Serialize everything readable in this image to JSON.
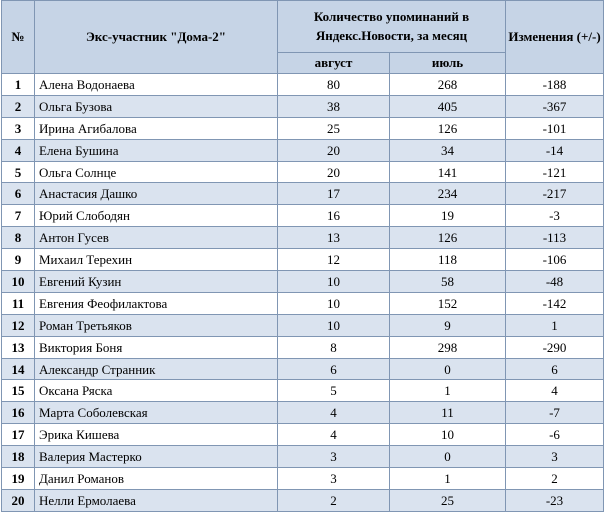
{
  "header": {
    "col_num": "№",
    "col_name": "Экс-участник \"Дома-2\"",
    "col_mentions": "Количество упоминаний в Яндекс.Новости, за месяц",
    "col_change": "Изменения (+/-)",
    "sub_august": "август",
    "sub_july": "июль"
  },
  "rows": [
    {
      "n": "1",
      "name": "Алена Водонаева",
      "aug": "80",
      "jul": "268",
      "chg": "-188"
    },
    {
      "n": "2",
      "name": "Ольга Бузова",
      "aug": "38",
      "jul": "405",
      "chg": "-367"
    },
    {
      "n": "3",
      "name": "Ирина Агибалова",
      "aug": "25",
      "jul": "126",
      "chg": "-101"
    },
    {
      "n": "4",
      "name": "Елена Бушина",
      "aug": "20",
      "jul": "34",
      "chg": "-14"
    },
    {
      "n": "5",
      "name": "Ольга Солнце",
      "aug": "20",
      "jul": "141",
      "chg": "-121"
    },
    {
      "n": "6",
      "name": "Анастасия Дашко",
      "aug": "17",
      "jul": "234",
      "chg": "-217"
    },
    {
      "n": "7",
      "name": "Юрий Слободян",
      "aug": "16",
      "jul": "19",
      "chg": "-3"
    },
    {
      "n": "8",
      "name": "Антон Гусев",
      "aug": "13",
      "jul": "126",
      "chg": "-113"
    },
    {
      "n": "9",
      "name": "Михаил Терехин",
      "aug": "12",
      "jul": "118",
      "chg": "-106"
    },
    {
      "n": "10",
      "name": "Евгений Кузин",
      "aug": "10",
      "jul": "58",
      "chg": "-48"
    },
    {
      "n": "11",
      "name": "Евгения Феофилактова",
      "aug": "10",
      "jul": "152",
      "chg": "-142"
    },
    {
      "n": "12",
      "name": "Роман Третьяков",
      "aug": "10",
      "jul": "9",
      "chg": "1"
    },
    {
      "n": "13",
      "name": "Виктория Боня",
      "aug": "8",
      "jul": "298",
      "chg": "-290"
    },
    {
      "n": "14",
      "name": "Александр Странник",
      "aug": "6",
      "jul": "0",
      "chg": "6"
    },
    {
      "n": "15",
      "name": "Оксана Ряска",
      "aug": "5",
      "jul": "1",
      "chg": "4"
    },
    {
      "n": "16",
      "name": "Марта Соболевская",
      "aug": "4",
      "jul": "11",
      "chg": "-7"
    },
    {
      "n": "17",
      "name": "Эрика Кишева",
      "aug": "4",
      "jul": "10",
      "chg": "-6"
    },
    {
      "n": "18",
      "name": "Валерия Мастерко",
      "aug": "3",
      "jul": "0",
      "chg": "3"
    },
    {
      "n": "19",
      "name": "Данил Романов",
      "aug": "3",
      "jul": "1",
      "chg": "2"
    },
    {
      "n": "20",
      "name": "Нелли Ермолаева",
      "aug": "2",
      "jul": "25",
      "chg": "-23"
    }
  ]
}
